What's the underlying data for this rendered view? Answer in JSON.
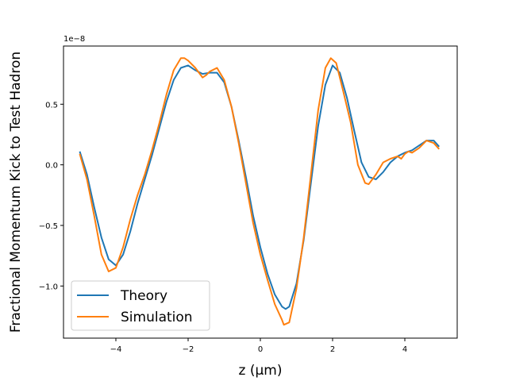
{
  "chart_data": {
    "type": "line",
    "title": "",
    "xlabel": "z (μm)",
    "ylabel": "Fractional Momentum Kick to Test Hadron",
    "y_offset_text": "1e−8",
    "y_scale": 1e-08,
    "xlim": [
      -5.45,
      5.45
    ],
    "ylim": [
      -1.43,
      0.98
    ],
    "x_ticks": [
      -4,
      -2,
      0,
      2,
      4
    ],
    "x_tick_labels": [
      "−4",
      "−2",
      "0",
      "2",
      "4"
    ],
    "y_ticks": [
      -1.0,
      -0.5,
      0.0,
      0.5
    ],
    "y_tick_labels": [
      "−1.0",
      "−0.5",
      "0.0",
      "0.5"
    ],
    "grid": false,
    "legend_position": "lower-left",
    "series": [
      {
        "name": "Theory",
        "color": "#1f77b4",
        "x": [
          -5.0,
          -4.8,
          -4.6,
          -4.4,
          -4.2,
          -4.0,
          -3.8,
          -3.6,
          -3.4,
          -3.2,
          -3.0,
          -2.8,
          -2.6,
          -2.4,
          -2.2,
          -2.0,
          -1.8,
          -1.6,
          -1.4,
          -1.2,
          -1.0,
          -0.8,
          -0.6,
          -0.4,
          -0.2,
          0.0,
          0.2,
          0.4,
          0.6,
          0.7,
          0.8,
          1.0,
          1.2,
          1.4,
          1.6,
          1.8,
          2.0,
          2.2,
          2.4,
          2.6,
          2.8,
          3.0,
          3.2,
          3.4,
          3.6,
          3.8,
          4.0,
          4.2,
          4.4,
          4.6,
          4.8,
          4.95
        ],
        "y": [
          0.11,
          -0.08,
          -0.35,
          -0.6,
          -0.78,
          -0.83,
          -0.74,
          -0.55,
          -0.32,
          -0.12,
          0.08,
          0.3,
          0.52,
          0.7,
          0.8,
          0.82,
          0.78,
          0.75,
          0.76,
          0.76,
          0.68,
          0.48,
          0.2,
          -0.1,
          -0.42,
          -0.68,
          -0.9,
          -1.07,
          -1.17,
          -1.19,
          -1.17,
          -0.98,
          -0.62,
          -0.15,
          0.32,
          0.66,
          0.82,
          0.76,
          0.55,
          0.28,
          0.02,
          -0.1,
          -0.12,
          -0.06,
          0.02,
          0.07,
          0.1,
          0.12,
          0.16,
          0.2,
          0.2,
          0.15
        ]
      },
      {
        "name": "Simulation",
        "color": "#ff7f0e",
        "x": [
          -5.0,
          -4.8,
          -4.6,
          -4.4,
          -4.2,
          -4.0,
          -3.8,
          -3.6,
          -3.4,
          -3.2,
          -3.0,
          -2.8,
          -2.6,
          -2.4,
          -2.2,
          -2.1,
          -2.0,
          -1.8,
          -1.6,
          -1.5,
          -1.4,
          -1.2,
          -1.0,
          -0.8,
          -0.6,
          -0.4,
          -0.2,
          0.0,
          0.2,
          0.4,
          0.6,
          0.65,
          0.8,
          1.0,
          1.2,
          1.4,
          1.6,
          1.8,
          1.95,
          2.1,
          2.3,
          2.5,
          2.7,
          2.9,
          3.0,
          3.2,
          3.4,
          3.6,
          3.7,
          3.8,
          3.9,
          4.0,
          4.1,
          4.2,
          4.4,
          4.6,
          4.8,
          4.95
        ],
        "y": [
          0.09,
          -0.12,
          -0.42,
          -0.74,
          -0.88,
          -0.85,
          -0.68,
          -0.45,
          -0.25,
          -0.08,
          0.12,
          0.34,
          0.58,
          0.78,
          0.88,
          0.88,
          0.86,
          0.8,
          0.72,
          0.74,
          0.77,
          0.8,
          0.7,
          0.48,
          0.18,
          -0.15,
          -0.48,
          -0.74,
          -0.95,
          -1.15,
          -1.28,
          -1.32,
          -1.3,
          -1.02,
          -0.6,
          -0.08,
          0.45,
          0.8,
          0.88,
          0.84,
          0.6,
          0.35,
          0.0,
          -0.15,
          -0.16,
          -0.08,
          0.02,
          0.05,
          0.06,
          0.07,
          0.05,
          0.09,
          0.11,
          0.1,
          0.14,
          0.2,
          0.18,
          0.13
        ]
      }
    ]
  }
}
